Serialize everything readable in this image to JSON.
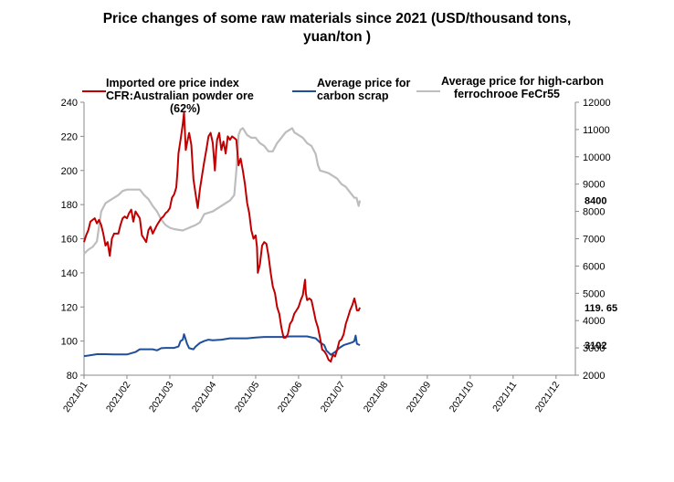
{
  "title_lines": [
    "Price changes of some raw materials since 2021 (USD/thousand tons,",
    "yuan/ton )"
  ],
  "legend": {
    "ore": [
      "Imported ore price index",
      "CFR:Australian powder ore",
      "(62%)"
    ],
    "scrap": [
      "Average price for",
      "carbon scrap"
    ],
    "ferro": [
      "Average price for high-carbon",
      "ferrochrooe FeCr55"
    ]
  },
  "chart_data": {
    "type": "line",
    "x_categories": [
      "2021/01",
      "2021/02",
      "2021/03",
      "2021/04",
      "2021/05",
      "2021/06",
      "2021/07",
      "2021/08",
      "2021/09",
      "2021/10",
      "2021/11",
      "2021/12"
    ],
    "left_axis": {
      "ticks": [
        80,
        100,
        120,
        140,
        160,
        180,
        200,
        220,
        240
      ],
      "ylim": [
        80,
        240
      ]
    },
    "right_axis": {
      "ticks": [
        2000,
        3000,
        4000,
        5000,
        6000,
        7000,
        8000,
        9000,
        10000,
        11000,
        12000
      ],
      "ylim": [
        2000,
        12000
      ]
    },
    "grid": false,
    "colors": {
      "ore": "#c00000",
      "scrap": "#1f4e9a",
      "ferro": "#bdbdbd"
    },
    "series": [
      {
        "key": "ore",
        "axis": "left",
        "points": [
          [
            0,
            158
          ],
          [
            0.05,
            162
          ],
          [
            0.1,
            165
          ],
          [
            0.15,
            170
          ],
          [
            0.2,
            171
          ],
          [
            0.25,
            172
          ],
          [
            0.3,
            169
          ],
          [
            0.35,
            171
          ],
          [
            0.4,
            168
          ],
          [
            0.45,
            163
          ],
          [
            0.5,
            156
          ],
          [
            0.55,
            158
          ],
          [
            0.6,
            150
          ],
          [
            0.65,
            160
          ],
          [
            0.7,
            163
          ],
          [
            0.8,
            163
          ],
          [
            0.85,
            168
          ],
          [
            0.9,
            172
          ],
          [
            0.95,
            173
          ],
          [
            1.0,
            172
          ],
          [
            1.05,
            175
          ],
          [
            1.1,
            177
          ],
          [
            1.15,
            170
          ],
          [
            1.2,
            176
          ],
          [
            1.25,
            174
          ],
          [
            1.3,
            172
          ],
          [
            1.35,
            162
          ],
          [
            1.4,
            160
          ],
          [
            1.45,
            158
          ],
          [
            1.5,
            165
          ],
          [
            1.55,
            167
          ],
          [
            1.6,
            163
          ],
          [
            1.7,
            168
          ],
          [
            1.75,
            170
          ],
          [
            1.8,
            172
          ],
          [
            1.85,
            173
          ],
          [
            1.9,
            175
          ],
          [
            1.95,
            176
          ],
          [
            2.0,
            178
          ],
          [
            2.05,
            184
          ],
          [
            2.1,
            186
          ],
          [
            2.15,
            190
          ],
          [
            2.18,
            200
          ],
          [
            2.2,
            210
          ],
          [
            2.25,
            218
          ],
          [
            2.3,
            227
          ],
          [
            2.33,
            234
          ],
          [
            2.37,
            212
          ],
          [
            2.4,
            216
          ],
          [
            2.45,
            222
          ],
          [
            2.5,
            215
          ],
          [
            2.55,
            195
          ],
          [
            2.6,
            186
          ],
          [
            2.65,
            178
          ],
          [
            2.7,
            189
          ],
          [
            2.75,
            197
          ],
          [
            2.8,
            205
          ],
          [
            2.85,
            212
          ],
          [
            2.9,
            220
          ],
          [
            2.95,
            222
          ],
          [
            3.0,
            216
          ],
          [
            3.05,
            200
          ],
          [
            3.08,
            212
          ],
          [
            3.1,
            218
          ],
          [
            3.15,
            222
          ],
          [
            3.2,
            212
          ],
          [
            3.25,
            217
          ],
          [
            3.3,
            210
          ],
          [
            3.35,
            220
          ],
          [
            3.4,
            218
          ],
          [
            3.45,
            220
          ],
          [
            3.5,
            219
          ],
          [
            3.55,
            218
          ],
          [
            3.6,
            203
          ],
          [
            3.65,
            207
          ],
          [
            3.7,
            200
          ],
          [
            3.75,
            192
          ],
          [
            3.8,
            181
          ],
          [
            3.85,
            175
          ],
          [
            3.9,
            165
          ],
          [
            3.95,
            160
          ],
          [
            4.0,
            162
          ],
          [
            4.03,
            155
          ],
          [
            4.05,
            140
          ],
          [
            4.1,
            145
          ],
          [
            4.15,
            156
          ],
          [
            4.2,
            158
          ],
          [
            4.25,
            157
          ],
          [
            4.3,
            150
          ],
          [
            4.35,
            140
          ],
          [
            4.4,
            132
          ],
          [
            4.45,
            128
          ],
          [
            4.5,
            120
          ],
          [
            4.55,
            116
          ],
          [
            4.6,
            108
          ],
          [
            4.65,
            102
          ],
          [
            4.7,
            102
          ],
          [
            4.75,
            104
          ],
          [
            4.8,
            110
          ],
          [
            4.85,
            112
          ],
          [
            4.9,
            116
          ],
          [
            4.95,
            118
          ],
          [
            5.0,
            120
          ],
          [
            5.05,
            124
          ],
          [
            5.1,
            127
          ],
          [
            5.15,
            136
          ],
          [
            5.17,
            128
          ],
          [
            5.2,
            124
          ],
          [
            5.25,
            125
          ],
          [
            5.3,
            124
          ],
          [
            5.35,
            118
          ],
          [
            5.4,
            112
          ],
          [
            5.45,
            108
          ],
          [
            5.5,
            102
          ],
          [
            5.55,
            95
          ],
          [
            5.6,
            94
          ],
          [
            5.65,
            92
          ],
          [
            5.7,
            89
          ],
          [
            5.75,
            88
          ],
          [
            5.8,
            92
          ],
          [
            5.85,
            91
          ],
          [
            5.9,
            95
          ],
          [
            5.95,
            100
          ],
          [
            6.0,
            101
          ],
          [
            6.05,
            104
          ],
          [
            6.1,
            110
          ],
          [
            6.15,
            114
          ],
          [
            6.2,
            118
          ],
          [
            6.25,
            121
          ],
          [
            6.3,
            125
          ],
          [
            6.33,
            122
          ],
          [
            6.36,
            118
          ],
          [
            6.4,
            118
          ],
          [
            6.43,
            119.65
          ]
        ]
      },
      {
        "key": "scrap",
        "axis": "right",
        "points": [
          [
            0,
            2700
          ],
          [
            0.1,
            2720
          ],
          [
            0.3,
            2770
          ],
          [
            0.5,
            2770
          ],
          [
            0.7,
            2760
          ],
          [
            1.0,
            2760
          ],
          [
            1.2,
            2850
          ],
          [
            1.3,
            2950
          ],
          [
            1.6,
            2950
          ],
          [
            1.7,
            2910
          ],
          [
            1.8,
            2990
          ],
          [
            1.9,
            3000
          ],
          [
            2.1,
            3000
          ],
          [
            2.2,
            3050
          ],
          [
            2.25,
            3250
          ],
          [
            2.3,
            3300
          ],
          [
            2.33,
            3500
          ],
          [
            2.37,
            3300
          ],
          [
            2.4,
            3150
          ],
          [
            2.45,
            2990
          ],
          [
            2.55,
            2950
          ],
          [
            2.6,
            3050
          ],
          [
            2.7,
            3180
          ],
          [
            2.8,
            3250
          ],
          [
            2.9,
            3300
          ],
          [
            3.0,
            3280
          ],
          [
            3.2,
            3300
          ],
          [
            3.4,
            3350
          ],
          [
            3.6,
            3350
          ],
          [
            3.8,
            3350
          ],
          [
            4.0,
            3380
          ],
          [
            4.2,
            3400
          ],
          [
            4.4,
            3400
          ],
          [
            4.6,
            3400
          ],
          [
            4.8,
            3420
          ],
          [
            5.0,
            3420
          ],
          [
            5.2,
            3420
          ],
          [
            5.4,
            3350
          ],
          [
            5.5,
            3200
          ],
          [
            5.6,
            3100
          ],
          [
            5.65,
            2900
          ],
          [
            5.75,
            2750
          ],
          [
            5.85,
            2850
          ],
          [
            5.95,
            3000
          ],
          [
            6.05,
            3100
          ],
          [
            6.15,
            3150
          ],
          [
            6.25,
            3200
          ],
          [
            6.3,
            3250
          ],
          [
            6.33,
            3450
          ],
          [
            6.36,
            3150
          ],
          [
            6.43,
            3102
          ]
        ]
      },
      {
        "key": "ferro",
        "axis": "right",
        "points": [
          [
            0,
            6450
          ],
          [
            0.1,
            6600
          ],
          [
            0.2,
            6700
          ],
          [
            0.3,
            6900
          ],
          [
            0.4,
            8000
          ],
          [
            0.5,
            8300
          ],
          [
            0.6,
            8400
          ],
          [
            0.8,
            8600
          ],
          [
            0.9,
            8750
          ],
          [
            1.0,
            8800
          ],
          [
            1.3,
            8800
          ],
          [
            1.4,
            8600
          ],
          [
            1.5,
            8450
          ],
          [
            1.6,
            8200
          ],
          [
            1.7,
            8000
          ],
          [
            1.8,
            7700
          ],
          [
            1.9,
            7500
          ],
          [
            2.0,
            7400
          ],
          [
            2.1,
            7350
          ],
          [
            2.3,
            7300
          ],
          [
            2.45,
            7400
          ],
          [
            2.6,
            7500
          ],
          [
            2.7,
            7600
          ],
          [
            2.8,
            7900
          ],
          [
            3.0,
            8000
          ],
          [
            3.2,
            8200
          ],
          [
            3.4,
            8400
          ],
          [
            3.5,
            8600
          ],
          [
            3.55,
            9500
          ],
          [
            3.6,
            10800
          ],
          [
            3.65,
            11000
          ],
          [
            3.7,
            11050
          ],
          [
            3.8,
            10800
          ],
          [
            3.9,
            10700
          ],
          [
            4.0,
            10700
          ],
          [
            4.1,
            10500
          ],
          [
            4.2,
            10400
          ],
          [
            4.3,
            10200
          ],
          [
            4.4,
            10200
          ],
          [
            4.5,
            10500
          ],
          [
            4.6,
            10700
          ],
          [
            4.7,
            10900
          ],
          [
            4.8,
            11000
          ],
          [
            4.85,
            11050
          ],
          [
            4.9,
            10900
          ],
          [
            5.0,
            10800
          ],
          [
            5.1,
            10700
          ],
          [
            5.2,
            10500
          ],
          [
            5.3,
            10400
          ],
          [
            5.4,
            10100
          ],
          [
            5.45,
            9700
          ],
          [
            5.5,
            9500
          ],
          [
            5.6,
            9450
          ],
          [
            5.7,
            9400
          ],
          [
            5.8,
            9300
          ],
          [
            5.9,
            9200
          ],
          [
            6.0,
            9000
          ],
          [
            6.1,
            8900
          ],
          [
            6.2,
            8700
          ],
          [
            6.3,
            8500
          ],
          [
            6.35,
            8500
          ],
          [
            6.4,
            8200
          ],
          [
            6.43,
            8400
          ]
        ]
      }
    ],
    "end_labels": {
      "ore": "119. 65",
      "ferro": "8400",
      "scrap": "3102"
    }
  }
}
